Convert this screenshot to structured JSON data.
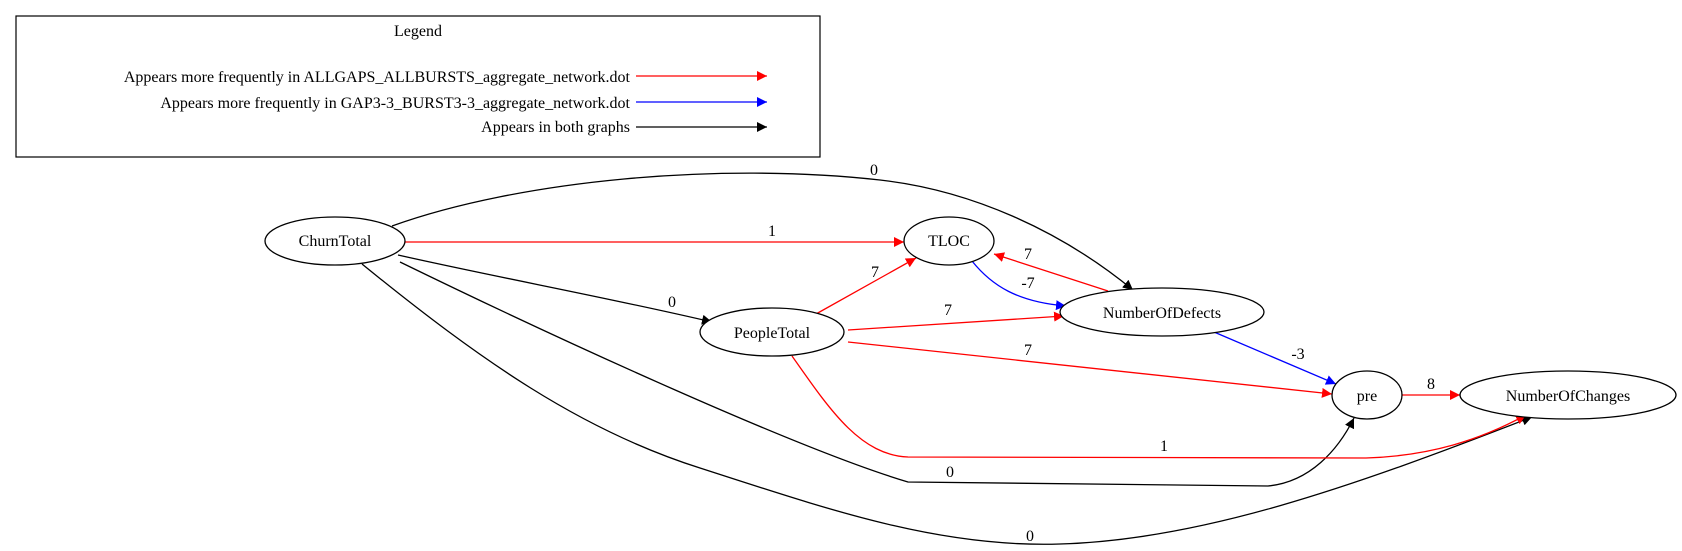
{
  "colors": {
    "red": "#ff0000",
    "blue": "#0000ff",
    "black": "#000000"
  },
  "legend": {
    "title": "Legend",
    "items": [
      {
        "label": "Appears more frequently in ALLGAPS_ALLBURSTS_aggregate_network.dot",
        "color": "#ff0000"
      },
      {
        "label": "Appears more frequently in GAP3-3_BURST3-3_aggregate_network.dot",
        "color": "#0000ff"
      },
      {
        "label": "Appears in both graphs",
        "color": "#000000"
      }
    ]
  },
  "nodes": {
    "churn_total": "ChurnTotal",
    "tloc": "TLOC",
    "people_total": "PeopleTotal",
    "number_of_defects": "NumberOfDefects",
    "pre": "pre",
    "number_of_changes": "NumberOfChanges"
  },
  "edges": [
    {
      "from": "ChurnTotal",
      "to": "NumberOfDefects",
      "weight": "0",
      "color": "#000000"
    },
    {
      "from": "ChurnTotal",
      "to": "TLOC",
      "weight": "1",
      "color": "#ff0000"
    },
    {
      "from": "ChurnTotal",
      "to": "PeopleTotal",
      "weight": "0",
      "color": "#000000"
    },
    {
      "from": "ChurnTotal",
      "to": "pre",
      "weight": "0",
      "color": "#000000"
    },
    {
      "from": "ChurnTotal",
      "to": "NumberOfChanges",
      "weight": "0",
      "color": "#000000"
    },
    {
      "from": "PeopleTotal",
      "to": "TLOC",
      "weight": "7",
      "color": "#ff0000"
    },
    {
      "from": "PeopleTotal",
      "to": "NumberOfDefects",
      "weight": "7",
      "color": "#ff0000"
    },
    {
      "from": "PeopleTotal",
      "to": "pre",
      "weight": "7",
      "color": "#ff0000"
    },
    {
      "from": "PeopleTotal",
      "to": "NumberOfChanges",
      "weight": "1",
      "color": "#ff0000"
    },
    {
      "from": "NumberOfDefects",
      "to": "TLOC",
      "weight": "7",
      "color": "#ff0000"
    },
    {
      "from": "TLOC",
      "to": "NumberOfDefects",
      "weight": "-7",
      "color": "#0000ff"
    },
    {
      "from": "NumberOfDefects",
      "to": "pre",
      "weight": "-3",
      "color": "#0000ff"
    },
    {
      "from": "pre",
      "to": "NumberOfChanges",
      "weight": "8",
      "color": "#ff0000"
    }
  ]
}
